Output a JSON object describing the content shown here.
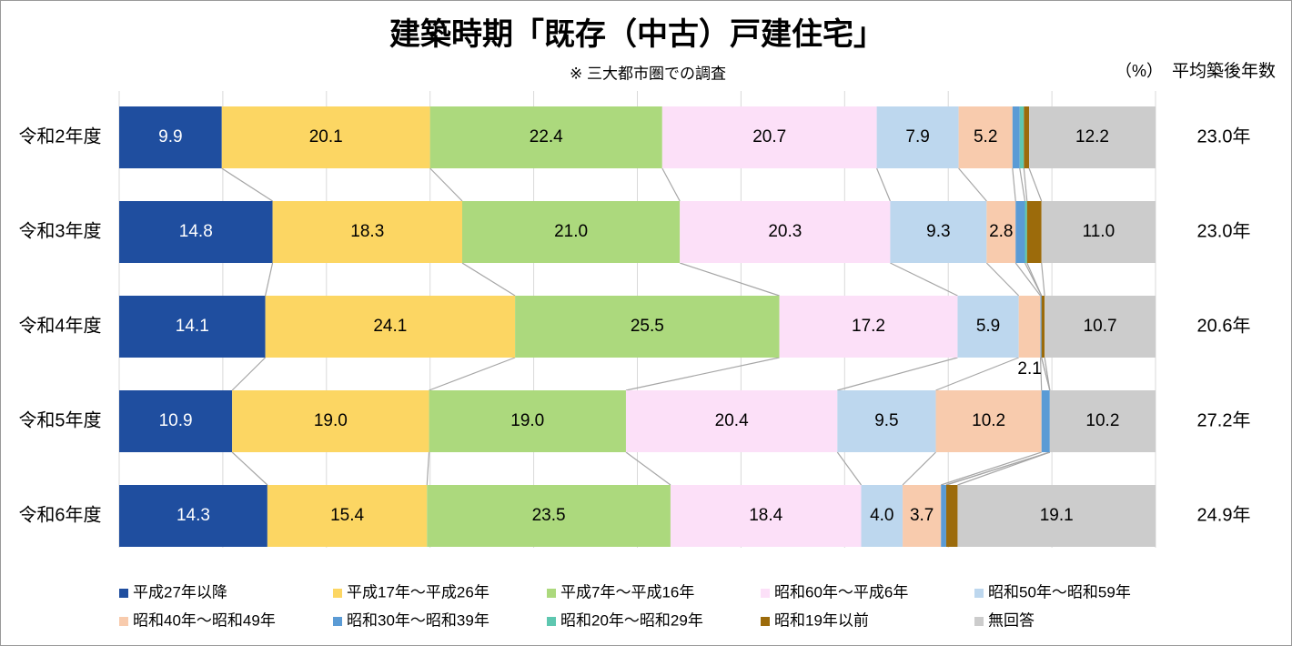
{
  "chart_data": {
    "type": "stacked-bar-horizontal",
    "title": "建築時期「既存（中古）戸建住宅」",
    "subtitle": "※ 三大都市圏での調査",
    "unit_label": "（%）",
    "side_title": "平均築後年数",
    "side_labels": [
      "23.0年",
      "23.0年",
      "20.6年",
      "27.2年",
      "24.9年"
    ],
    "categories": [
      "令和2年度",
      "令和3年度",
      "令和4年度",
      "令和5年度",
      "令和6年度"
    ],
    "xlim": [
      0,
      100
    ],
    "xticks": [
      0,
      10,
      20,
      30,
      40,
      50,
      60,
      70,
      80,
      90,
      100
    ],
    "grid": true,
    "series": [
      {
        "name": "平成27年以降",
        "color": "#1f4e9f",
        "values": [
          9.9,
          14.8,
          14.1,
          10.9,
          14.3
        ]
      },
      {
        "name": "平成17年～平成26年",
        "color": "#fcd663",
        "values": [
          20.1,
          18.3,
          24.1,
          19.0,
          15.4
        ],
        "value_labels": [
          "20.1",
          "18.3",
          "24.1",
          "19.0",
          "15.4"
        ]
      },
      {
        "name": "平成7年～平成16年",
        "color": "#acd97d",
        "values": [
          22.4,
          21.0,
          25.5,
          19.0,
          23.5
        ],
        "value_labels": [
          "22.4",
          "21.0",
          "25.5",
          "19.0",
          "23.5"
        ]
      },
      {
        "name": "昭和60年～平成6年",
        "color": "#fce0f8",
        "values": [
          20.7,
          20.3,
          17.2,
          20.4,
          18.4
        ]
      },
      {
        "name": "昭和50年～昭和59年",
        "color": "#bdd7ee",
        "values": [
          7.9,
          9.3,
          5.9,
          9.5,
          4.0
        ],
        "value_labels": [
          "7.9",
          "9.3",
          "5.9",
          "9.5",
          "4.0"
        ]
      },
      {
        "name": "昭和40年～昭和49年",
        "color": "#f8cbad",
        "values": [
          5.2,
          2.8,
          2.1,
          10.2,
          3.7
        ]
      },
      {
        "name": "昭和30年～昭和39年",
        "color": "#5b9bd5",
        "values": [
          0.7,
          0.9,
          0.1,
          0.8,
          0.5
        ],
        "value_labels": [
          null,
          null,
          null,
          null,
          null
        ]
      },
      {
        "name": "昭和20年～昭和29年",
        "color": "#5ec7b0",
        "values": [
          0.4,
          0.2,
          0,
          0,
          0
        ],
        "value_labels": [
          null,
          null,
          null,
          null,
          null
        ]
      },
      {
        "name": "昭和19年以前",
        "color": "#9c6b0b",
        "values": [
          0.5,
          1.4,
          0.3,
          0,
          1.1
        ],
        "value_labels": [
          null,
          null,
          null,
          null,
          null
        ]
      },
      {
        "name": "無回答",
        "color": "#cccccc",
        "values": [
          12.2,
          11.0,
          10.7,
          10.2,
          19.1
        ],
        "value_labels": [
          "12.2",
          "11.0",
          "10.7",
          "10.2",
          "19.1"
        ]
      }
    ]
  }
}
